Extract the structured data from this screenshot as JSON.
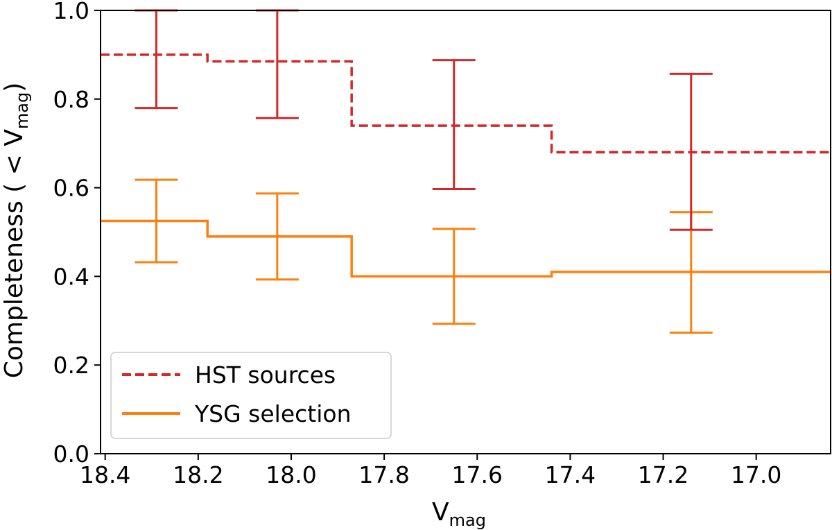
{
  "chart_data": {
    "type": "line",
    "step": true,
    "x_reversed": true,
    "xlabel": {
      "main": "V",
      "sub": "mag"
    },
    "ylabel": {
      "main": "Completeness ( < V",
      "sub": "mag",
      "tail": ")"
    },
    "xlim": [
      18.41,
      16.84
    ],
    "ylim": [
      0.0,
      1.0
    ],
    "xticks": [
      18.4,
      18.2,
      18.0,
      17.8,
      17.6,
      17.4,
      17.2,
      17.0
    ],
    "xtick_labels": [
      "18.4",
      "18.2",
      "18.0",
      "17.8",
      "17.6",
      "17.4",
      "17.2",
      "17.0"
    ],
    "yticks": [
      0.0,
      0.2,
      0.4,
      0.6,
      0.8,
      1.0
    ],
    "ytick_labels": [
      "0.0",
      "0.2",
      "0.4",
      "0.6",
      "0.8",
      "1.0"
    ],
    "grid": false,
    "legend_position": "bottom-left",
    "series": [
      {
        "name": "HST sources",
        "color": "#d62728",
        "dashed": true,
        "bin_edges": [
          18.41,
          18.18,
          17.87,
          17.44,
          16.84
        ],
        "values": [
          0.9,
          0.885,
          0.74,
          0.68
        ],
        "error_x": [
          18.29,
          18.03,
          17.65,
          17.14
        ],
        "error_center": [
          0.89,
          0.88,
          0.745,
          0.683
        ],
        "error_low": [
          0.78,
          0.757,
          0.597,
          0.505
        ],
        "error_high": [
          1.0,
          1.0,
          0.888,
          0.857
        ]
      },
      {
        "name": "YSG selection",
        "color": "#ff7f0e",
        "dashed": false,
        "bin_edges": [
          18.41,
          18.18,
          17.87,
          17.44,
          16.84
        ],
        "values": [
          0.525,
          0.49,
          0.4,
          0.41
        ],
        "error_x": [
          18.29,
          18.03,
          17.65,
          17.14
        ],
        "error_center": [
          0.525,
          0.49,
          0.4,
          0.41
        ],
        "error_low": [
          0.432,
          0.393,
          0.293,
          0.273
        ],
        "error_high": [
          0.618,
          0.587,
          0.507,
          0.545
        ]
      }
    ]
  }
}
